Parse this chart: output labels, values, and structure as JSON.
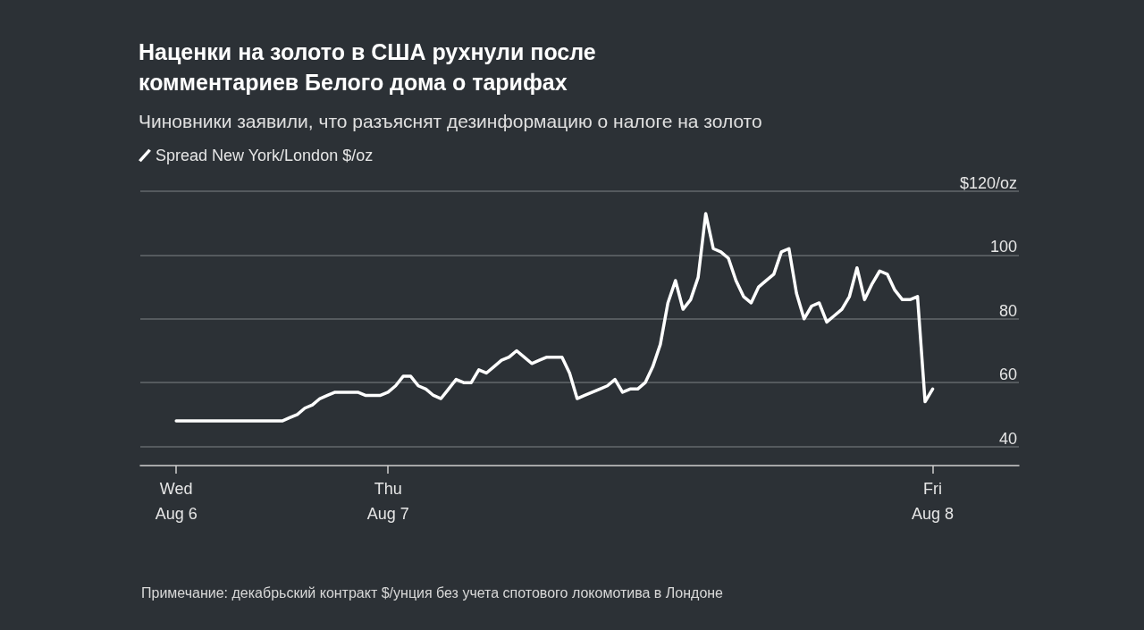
{
  "chart_data": {
    "type": "line",
    "title": "Наценки на золото в США рухнули после комментариев Белого дома о тарифах",
    "subtitle": "Чиновники заявили, что разъяснят дезинформацию о налоге на золото",
    "categories": [
      "Wed\nAug 6",
      null,
      null,
      null,
      null,
      null,
      null,
      null,
      null,
      null,
      null,
      null,
      null,
      null,
      null,
      null,
      null,
      null,
      null,
      null,
      null,
      null,
      null,
      null,
      null,
      null,
      null,
      null,
      "Thu\nAug 7",
      null,
      null,
      null,
      null,
      null,
      null,
      null,
      null,
      null,
      null,
      null,
      null,
      null,
      null,
      null,
      null,
      null,
      null,
      null,
      null,
      null,
      null,
      null,
      null,
      null,
      null,
      null,
      null,
      null,
      null,
      null,
      null,
      null,
      null,
      null,
      null,
      null,
      null,
      null,
      null,
      null,
      null,
      null,
      null,
      null,
      null,
      null,
      null,
      null,
      null,
      null,
      null,
      null,
      null,
      null,
      null,
      null,
      null,
      null,
      null,
      null,
      null,
      null,
      null,
      null,
      null,
      null,
      null,
      null,
      null,
      null,
      "Fri\nAug 8"
    ],
    "series": [
      {
        "name": "Spread New York/London $/oz",
        "color": "#ffffff",
        "values": [
          48,
          48,
          48,
          48,
          48,
          48,
          48,
          48,
          48,
          48,
          48,
          48,
          48,
          48,
          48,
          49,
          50,
          52,
          53,
          55,
          56,
          57,
          57,
          57,
          57,
          56,
          56,
          56,
          57,
          59,
          62,
          62,
          59,
          58,
          56,
          55,
          58,
          61,
          60,
          60,
          64,
          63,
          65,
          67,
          68,
          70,
          68,
          66,
          67,
          68,
          68,
          68,
          63,
          55,
          56,
          57,
          58,
          59,
          61,
          57,
          58,
          58,
          60,
          65,
          72,
          85,
          92,
          83,
          86,
          93,
          113,
          102,
          101,
          99,
          92,
          87,
          85,
          90,
          92,
          94,
          101,
          102,
          88,
          80,
          84,
          85,
          79,
          81,
          83,
          87,
          96,
          86,
          91,
          95,
          94,
          89,
          86,
          86,
          87,
          54,
          58
        ]
      }
    ],
    "ylim": [
      34,
      120
    ],
    "yticks": [
      40,
      60,
      80,
      100,
      {
        "value": 120,
        "label": "$120/oz"
      }
    ],
    "grid": "y",
    "legend": "top left",
    "marker": "none",
    "line_style": "solid",
    "annotations": [
      "Примечание: декабрьский контракт $/унция без учета спотового локомотива в Лондоне"
    ]
  }
}
